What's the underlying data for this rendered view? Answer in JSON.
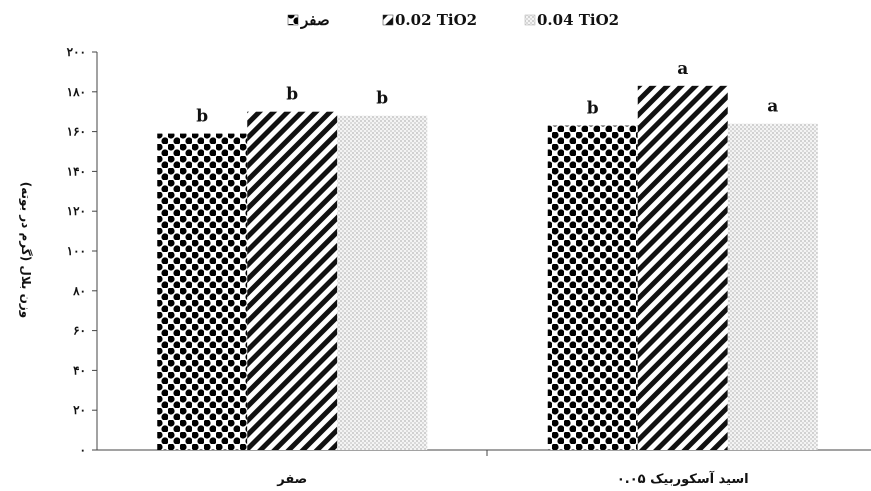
{
  "chart_data": {
    "type": "bar",
    "title": "",
    "xlabel": "",
    "ylabel": "وزن بلال (گرم در بوته)",
    "ylim": [
      0,
      200
    ],
    "yticks": [
      0,
      20,
      40,
      60,
      80,
      100,
      120,
      140,
      160,
      180,
      200
    ],
    "ytick_labels": [
      "۰",
      "۲۰",
      "۴۰",
      "۶۰",
      "۸۰",
      "۱۰۰",
      "۱۲۰",
      "۱۴۰",
      "۱۶۰",
      "۱۸۰",
      "۲۰۰"
    ],
    "categories": [
      "صفر",
      "۰.۰۵ اسید آسکوربیک"
    ],
    "series": [
      {
        "name": "صفر",
        "pattern": "checker",
        "values": [
          159,
          163
        ],
        "labels": [
          "b",
          "b"
        ]
      },
      {
        "name": "0.02 TiO2",
        "pattern": "diagonal",
        "values": [
          170,
          183
        ],
        "labels": [
          "b",
          "a"
        ]
      },
      {
        "name": "0.04 TiO2",
        "pattern": "dots",
        "values": [
          168,
          164
        ],
        "labels": [
          "b",
          "a"
        ]
      }
    ],
    "legend_position": "top",
    "grid": false,
    "colors": {
      "bar_dark": "#000000",
      "bar_light": "#ffffff",
      "dot": "#b8b8b8"
    }
  }
}
